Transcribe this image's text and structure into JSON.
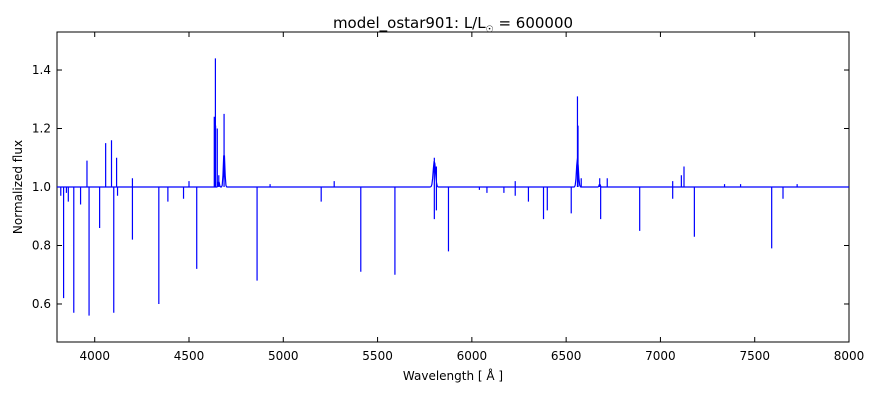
{
  "chart_data": {
    "type": "line",
    "title_main": "model_ostar901: L/L",
    "title_sub": "☉",
    "title_value": " = 600000",
    "xlabel": "Wavelength [ Å ]",
    "ylabel": "Normalized flux",
    "xlim": [
      3800,
      8000
    ],
    "ylim": [
      0.47,
      1.53
    ],
    "xticks": [
      4000,
      4500,
      5000,
      5500,
      6000,
      6500,
      7000,
      7500,
      8000
    ],
    "xtick_labels": [
      "4000",
      "4500",
      "5000",
      "5500",
      "6000",
      "6500",
      "7000",
      "7500",
      "8000"
    ],
    "yticks": [
      0.6,
      0.8,
      1.0,
      1.2,
      1.4
    ],
    "ytick_labels": [
      "0.6",
      "0.8",
      "1.0",
      "1.2",
      "1.4"
    ],
    "grid": false,
    "series": [
      {
        "color": "#0000ff",
        "continuum": 1.0,
        "absorption_lines": [
          [
            3820,
            0.97
          ],
          [
            3835,
            0.62
          ],
          [
            3850,
            0.98
          ],
          [
            3860,
            0.95
          ],
          [
            3889,
            0.57
          ],
          [
            3925,
            0.94
          ],
          [
            3970,
            0.56
          ],
          [
            4026,
            0.86
          ],
          [
            4101,
            0.57
          ],
          [
            4121,
            0.97
          ],
          [
            4200,
            0.82
          ],
          [
            4340,
            0.6
          ],
          [
            4388,
            0.95
          ],
          [
            4471,
            0.96
          ],
          [
            4541,
            0.72
          ],
          [
            4861,
            0.68
          ],
          [
            5201,
            0.95
          ],
          [
            5411,
            0.71
          ],
          [
            5592,
            0.7
          ],
          [
            5801,
            0.89
          ],
          [
            5812,
            0.92
          ],
          [
            5876,
            0.78
          ],
          [
            6040,
            0.99
          ],
          [
            6080,
            0.98
          ],
          [
            6170,
            0.98
          ],
          [
            6230,
            0.97
          ],
          [
            6300,
            0.95
          ],
          [
            6380,
            0.89
          ],
          [
            6400,
            0.92
          ],
          [
            6527,
            0.91
          ],
          [
            6683,
            0.89
          ],
          [
            6890,
            0.85
          ],
          [
            7065,
            0.96
          ],
          [
            7180,
            0.83
          ],
          [
            7590,
            0.79
          ],
          [
            7650,
            0.96
          ]
        ],
        "emission_lines": [
          [
            3815,
            1.0
          ],
          [
            3959,
            1.09
          ],
          [
            4058,
            1.15
          ],
          [
            4089,
            1.16
          ],
          [
            4116,
            1.1
          ],
          [
            4200,
            1.03
          ],
          [
            4500,
            1.02
          ],
          [
            4634,
            1.24
          ],
          [
            4640,
            1.44
          ],
          [
            4641,
            1.21
          ],
          [
            4650,
            1.2
          ],
          [
            4658,
            1.04
          ],
          [
            4686,
            1.25
          ],
          [
            4930,
            1.01
          ],
          [
            5270,
            1.02
          ],
          [
            5696,
            1.0
          ],
          [
            5801,
            1.1
          ],
          [
            5812,
            1.07
          ],
          [
            6230,
            1.02
          ],
          [
            6560,
            1.31
          ],
          [
            6563,
            1.21
          ],
          [
            6580,
            1.03
          ],
          [
            6678,
            1.03
          ],
          [
            6718,
            1.03
          ],
          [
            7065,
            1.02
          ],
          [
            7111,
            1.04
          ],
          [
            7125,
            1.07
          ],
          [
            7340,
            1.01
          ],
          [
            7425,
            1.01
          ],
          [
            7725,
            1.01
          ]
        ]
      }
    ]
  }
}
